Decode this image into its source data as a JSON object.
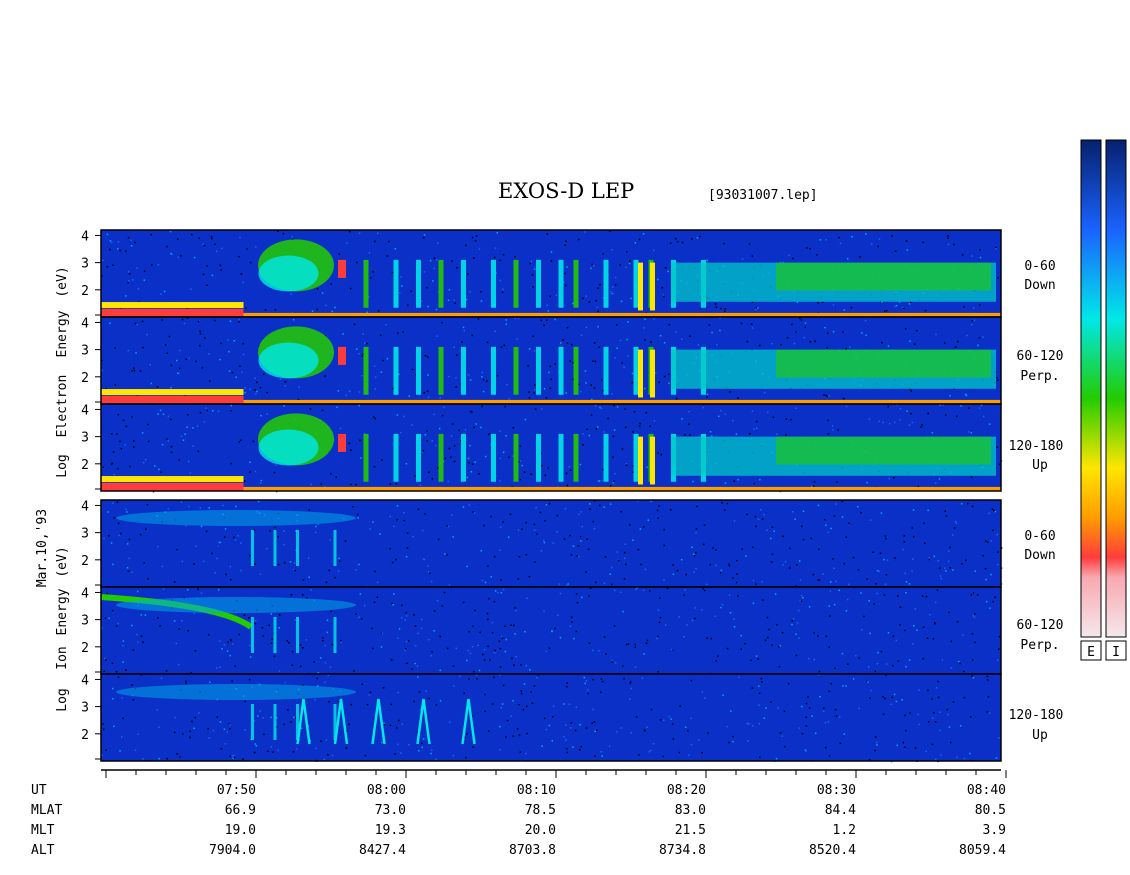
{
  "header": {
    "title": "EXOS-D LEP",
    "file": "[93031007.lep]"
  },
  "colors": {
    "background": "#ffffff",
    "panel_base": "#0a30c8",
    "colorbar": [
      "#f4e8ec",
      "#ff3c3c",
      "#ff9c00",
      "#ffe600",
      "#22cc00",
      "#00e8e8",
      "#1a62ff",
      "#06206e"
    ]
  },
  "y_labels": {
    "date": "Mar.10,'93",
    "electron": [
      "Log",
      "Electron",
      "Energy",
      "(eV)"
    ],
    "ion": [
      "Log",
      "Ion",
      "Energy",
      "(eV)"
    ]
  },
  "panel_labels": [
    {
      "angle": "0-60",
      "dir": "Down"
    },
    {
      "angle": "60-120",
      "dir": "Perp."
    },
    {
      "angle": "120-180",
      "dir": "Up"
    },
    {
      "angle": "0-60",
      "dir": "Down"
    },
    {
      "angle": "60-120",
      "dir": "Perp."
    },
    {
      "angle": "120-180",
      "dir": "Up"
    }
  ],
  "colorbar_labels": [
    "E",
    "I"
  ],
  "footer": {
    "row_labels": [
      "UT",
      "MLAT",
      "MLT",
      "ALT"
    ],
    "columns": [
      {
        "ut": "07:50",
        "mlat": "66.9",
        "mlt": "19.0",
        "alt": "7904.0"
      },
      {
        "ut": "08:00",
        "mlat": "73.0",
        "mlt": "19.3",
        "alt": "8427.4"
      },
      {
        "ut": "08:10",
        "mlat": "78.5",
        "mlt": "20.0",
        "alt": "8703.8"
      },
      {
        "ut": "08:20",
        "mlat": "83.0",
        "mlt": "21.5",
        "alt": "8734.8"
      },
      {
        "ut": "08:30",
        "mlat": "84.4",
        "mlt": "1.2",
        "alt": "8520.4"
      },
      {
        "ut": "08:40",
        "mlat": "80.5",
        "mlt": "3.9",
        "alt": "8059.4"
      }
    ]
  },
  "chart_data": {
    "type": "heatmap",
    "title": "EXOS-D LEP",
    "subtitle": "[93031007.lep]",
    "x": {
      "label": "UT",
      "unit": "minutes",
      "range": [
        "07:40",
        "08:40"
      ],
      "major_step_min": 10,
      "minor_step_min": 2
    },
    "panels": [
      {
        "species": "Electron",
        "pitch_angle": "0-60",
        "direction": "Down",
        "yticks": [
          2,
          3,
          4
        ],
        "ylim": [
          1,
          4.2
        ]
      },
      {
        "species": "Electron",
        "pitch_angle": "60-120",
        "direction": "Perp.",
        "yticks": [
          2,
          3,
          4
        ],
        "ylim": [
          1,
          4.2
        ]
      },
      {
        "species": "Electron",
        "pitch_angle": "120-180",
        "direction": "Up",
        "yticks": [
          2,
          3,
          4
        ],
        "ylim": [
          1,
          4.2
        ]
      },
      {
        "species": "Ion",
        "pitch_angle": "0-60",
        "direction": "Down",
        "yticks": [
          2,
          3,
          4
        ],
        "ylim": [
          1,
          4.2
        ]
      },
      {
        "species": "Ion",
        "pitch_angle": "60-120",
        "direction": "Perp.",
        "yticks": [
          2,
          3,
          4
        ],
        "ylim": [
          1,
          4.2
        ]
      },
      {
        "species": "Ion",
        "pitch_angle": "120-180",
        "direction": "Up",
        "yticks": [
          2,
          3,
          4
        ],
        "ylim": [
          1,
          4.2
        ]
      }
    ]
  }
}
